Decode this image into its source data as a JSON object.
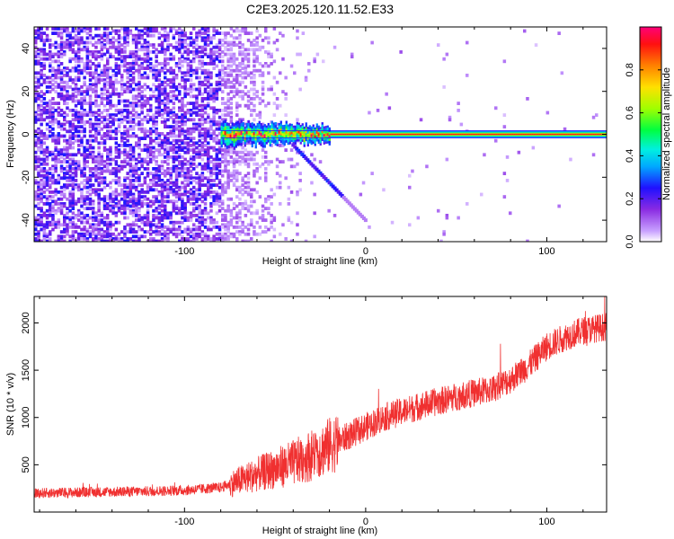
{
  "title": "C2E3.2025.120.11.52.E33",
  "chart_data": [
    {
      "type": "heatmap",
      "xlabel": "Height of straight line (km)",
      "ylabel": "Frequency (Hz)",
      "xlim": [
        -183,
        133
      ],
      "ylim": [
        -50,
        50
      ],
      "xticks": [
        -100,
        0,
        100
      ],
      "yticks": [
        -40,
        -20,
        0,
        20,
        40
      ],
      "grid": false,
      "colorbar": {
        "label": "Normalized spectral amplitude",
        "range": [
          0,
          1
        ],
        "ticks": [
          0.0,
          0.2,
          0.4,
          0.6,
          0.8
        ],
        "tick_labels": [
          "0.0",
          "0.2",
          "0.4",
          "0.6",
          "0.8"
        ],
        "colormap": [
          "#ffffff",
          "#a060ff",
          "#3000ff",
          "#00c8ff",
          "#00ff60",
          "#80ff00",
          "#ffff00",
          "#ffa000",
          "#ff2000",
          "#ff0080"
        ]
      },
      "features": {
        "noise_region_x": [
          -183,
          -80
        ],
        "noise_fade_x": [
          -80,
          -25
        ],
        "carrier_start_x": -80,
        "carrier_frequency": 0,
        "chirp_branch": {
          "x": [
            -40,
            0
          ],
          "frequency": [
            -5,
            -40
          ]
        }
      }
    },
    {
      "type": "line",
      "xlabel": "Height of straight line (km)",
      "ylabel": "SNR (10 * v/v)",
      "xlim": [
        -183,
        133
      ],
      "ylim": [
        0,
        2280
      ],
      "xticks": [
        -100,
        0,
        100
      ],
      "yticks": [
        500,
        1000,
        1500,
        2000
      ],
      "grid": false,
      "color": "#f03030",
      "trend": {
        "x": [
          -183,
          -150,
          -120,
          -100,
          -80,
          -70,
          -60,
          -50,
          -40,
          -30,
          -20,
          -10,
          0,
          10,
          20,
          30,
          40,
          50,
          60,
          70,
          80,
          90,
          100,
          110,
          120,
          133
        ],
        "y": [
          200,
          210,
          220,
          230,
          260,
          330,
          400,
          460,
          520,
          600,
          700,
          800,
          900,
          1000,
          1060,
          1120,
          1170,
          1220,
          1260,
          1300,
          1400,
          1550,
          1750,
          1850,
          1920,
          1960
        ]
      }
    }
  ]
}
